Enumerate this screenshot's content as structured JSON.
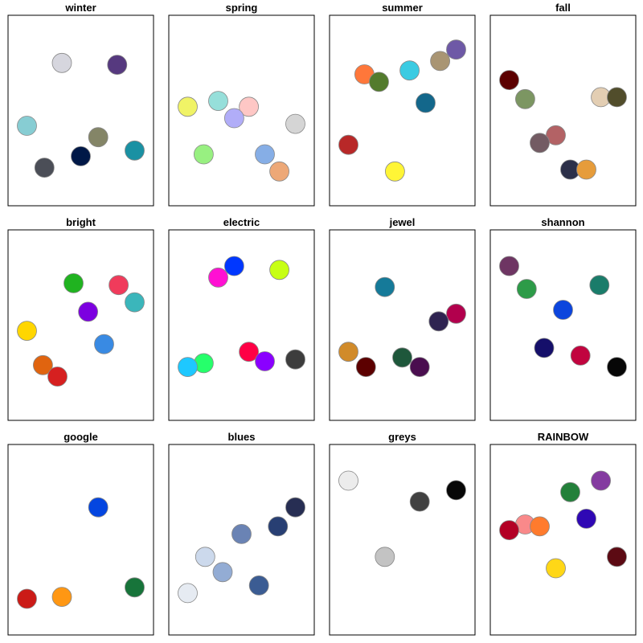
{
  "chart_data": [
    {
      "type": "scatter",
      "title": "winter",
      "points": [
        {
          "x": 0.37,
          "y": 0.75,
          "color": "#d6d6de"
        },
        {
          "x": 0.75,
          "y": 0.74,
          "color": "#56397f"
        },
        {
          "x": 0.13,
          "y": 0.42,
          "color": "#87cdd3"
        },
        {
          "x": 0.62,
          "y": 0.36,
          "color": "#848567"
        },
        {
          "x": 0.5,
          "y": 0.26,
          "color": "#001847"
        },
        {
          "x": 0.87,
          "y": 0.29,
          "color": "#1a91a3"
        },
        {
          "x": 0.25,
          "y": 0.2,
          "color": "#4b4e57"
        }
      ]
    },
    {
      "type": "scatter",
      "title": "spring",
      "points": [
        {
          "x": 0.13,
          "y": 0.52,
          "color": "#f0f366"
        },
        {
          "x": 0.34,
          "y": 0.55,
          "color": "#96dfda"
        },
        {
          "x": 0.55,
          "y": 0.52,
          "color": "#fec7c5"
        },
        {
          "x": 0.45,
          "y": 0.46,
          "color": "#b1adf8"
        },
        {
          "x": 0.87,
          "y": 0.43,
          "color": "#d5d5d5"
        },
        {
          "x": 0.24,
          "y": 0.27,
          "color": "#98f081"
        },
        {
          "x": 0.66,
          "y": 0.27,
          "color": "#86aee6"
        },
        {
          "x": 0.76,
          "y": 0.18,
          "color": "#eda877"
        }
      ]
    },
    {
      "type": "scatter",
      "title": "summer",
      "points": [
        {
          "x": 0.87,
          "y": 0.82,
          "color": "#6e59a6"
        },
        {
          "x": 0.76,
          "y": 0.76,
          "color": "#a99573"
        },
        {
          "x": 0.55,
          "y": 0.71,
          "color": "#3bcbe2"
        },
        {
          "x": 0.24,
          "y": 0.69,
          "color": "#ff773a"
        },
        {
          "x": 0.34,
          "y": 0.65,
          "color": "#537b2d"
        },
        {
          "x": 0.66,
          "y": 0.54,
          "color": "#13678b"
        },
        {
          "x": 0.13,
          "y": 0.32,
          "color": "#b82828"
        },
        {
          "x": 0.45,
          "y": 0.18,
          "color": "#fff536"
        }
      ]
    },
    {
      "type": "scatter",
      "title": "fall",
      "points": [
        {
          "x": 0.13,
          "y": 0.66,
          "color": "#5c0000"
        },
        {
          "x": 0.24,
          "y": 0.56,
          "color": "#7c9662"
        },
        {
          "x": 0.76,
          "y": 0.57,
          "color": "#e3ceb3"
        },
        {
          "x": 0.87,
          "y": 0.57,
          "color": "#514d2b"
        },
        {
          "x": 0.45,
          "y": 0.37,
          "color": "#b36265"
        },
        {
          "x": 0.34,
          "y": 0.33,
          "color": "#735b63"
        },
        {
          "x": 0.55,
          "y": 0.19,
          "color": "#2c3049"
        },
        {
          "x": 0.66,
          "y": 0.19,
          "color": "#e69c3b"
        }
      ]
    },
    {
      "type": "scatter",
      "title": "bright",
      "points": [
        {
          "x": 0.45,
          "y": 0.72,
          "color": "#20b320"
        },
        {
          "x": 0.76,
          "y": 0.71,
          "color": "#f03b5b"
        },
        {
          "x": 0.87,
          "y": 0.62,
          "color": "#3bb6bb"
        },
        {
          "x": 0.55,
          "y": 0.57,
          "color": "#7c00e0"
        },
        {
          "x": 0.13,
          "y": 0.47,
          "color": "#ffd600"
        },
        {
          "x": 0.66,
          "y": 0.4,
          "color": "#398ae3"
        },
        {
          "x": 0.24,
          "y": 0.29,
          "color": "#e0640f"
        },
        {
          "x": 0.34,
          "y": 0.23,
          "color": "#d62020"
        }
      ]
    },
    {
      "type": "scatter",
      "title": "electric",
      "points": [
        {
          "x": 0.45,
          "y": 0.81,
          "color": "#0037ff"
        },
        {
          "x": 0.76,
          "y": 0.79,
          "color": "#c7ff14"
        },
        {
          "x": 0.34,
          "y": 0.75,
          "color": "#ff10d3"
        },
        {
          "x": 0.55,
          "y": 0.36,
          "color": "#ff0045"
        },
        {
          "x": 0.87,
          "y": 0.32,
          "color": "#3d3d3d"
        },
        {
          "x": 0.24,
          "y": 0.3,
          "color": "#26ff6b"
        },
        {
          "x": 0.66,
          "y": 0.31,
          "color": "#8a00ff"
        },
        {
          "x": 0.13,
          "y": 0.28,
          "color": "#1ec8ff"
        }
      ]
    },
    {
      "type": "scatter",
      "title": "jewel",
      "points": [
        {
          "x": 0.38,
          "y": 0.7,
          "color": "#157a99"
        },
        {
          "x": 0.87,
          "y": 0.56,
          "color": "#b2004d"
        },
        {
          "x": 0.75,
          "y": 0.52,
          "color": "#2f2451"
        },
        {
          "x": 0.13,
          "y": 0.36,
          "color": "#d18b2a"
        },
        {
          "x": 0.5,
          "y": 0.33,
          "color": "#1e573b"
        },
        {
          "x": 0.25,
          "y": 0.28,
          "color": "#5c0000"
        },
        {
          "x": 0.62,
          "y": 0.28,
          "color": "#4a0e4f"
        }
      ]
    },
    {
      "type": "scatter",
      "title": "shannon",
      "points": [
        {
          "x": 0.13,
          "y": 0.81,
          "color": "#6e3563"
        },
        {
          "x": 0.25,
          "y": 0.69,
          "color": "#2d9b48"
        },
        {
          "x": 0.75,
          "y": 0.71,
          "color": "#1a7c6a"
        },
        {
          "x": 0.5,
          "y": 0.58,
          "color": "#0c45dd"
        },
        {
          "x": 0.37,
          "y": 0.38,
          "color": "#150f6a"
        },
        {
          "x": 0.62,
          "y": 0.34,
          "color": "#c1043f"
        },
        {
          "x": 0.87,
          "y": 0.28,
          "color": "#070707"
        }
      ]
    },
    {
      "type": "scatter",
      "title": "google",
      "points": [
        {
          "x": 0.62,
          "y": 0.67,
          "color": "#0446e0"
        },
        {
          "x": 0.87,
          "y": 0.25,
          "color": "#17743a"
        },
        {
          "x": 0.13,
          "y": 0.19,
          "color": "#cb1b17"
        },
        {
          "x": 0.37,
          "y": 0.2,
          "color": "#ff9713"
        }
      ]
    },
    {
      "type": "scatter",
      "title": "blues",
      "points": [
        {
          "x": 0.87,
          "y": 0.67,
          "color": "#272e53"
        },
        {
          "x": 0.75,
          "y": 0.57,
          "color": "#283f73"
        },
        {
          "x": 0.5,
          "y": 0.53,
          "color": "#6a83b4"
        },
        {
          "x": 0.25,
          "y": 0.41,
          "color": "#ccd9ec"
        },
        {
          "x": 0.37,
          "y": 0.33,
          "color": "#93acd4"
        },
        {
          "x": 0.62,
          "y": 0.26,
          "color": "#3b5c93"
        },
        {
          "x": 0.13,
          "y": 0.22,
          "color": "#e6ebf2"
        }
      ]
    },
    {
      "type": "scatter",
      "title": "greys",
      "points": [
        {
          "x": 0.13,
          "y": 0.81,
          "color": "#ececec"
        },
        {
          "x": 0.87,
          "y": 0.76,
          "color": "#070707"
        },
        {
          "x": 0.62,
          "y": 0.7,
          "color": "#414141"
        },
        {
          "x": 0.38,
          "y": 0.41,
          "color": "#c3c3c3"
        }
      ]
    },
    {
      "type": "scatter",
      "title": "RAINBOW",
      "points": [
        {
          "x": 0.76,
          "y": 0.81,
          "color": "#843ba0"
        },
        {
          "x": 0.55,
          "y": 0.75,
          "color": "#23803a"
        },
        {
          "x": 0.66,
          "y": 0.61,
          "color": "#2f08b4"
        },
        {
          "x": 0.24,
          "y": 0.58,
          "color": "#f9898a"
        },
        {
          "x": 0.34,
          "y": 0.57,
          "color": "#ff7b2d"
        },
        {
          "x": 0.13,
          "y": 0.55,
          "color": "#b30025"
        },
        {
          "x": 0.87,
          "y": 0.41,
          "color": "#5c0a13"
        },
        {
          "x": 0.45,
          "y": 0.35,
          "color": "#ffd717"
        }
      ]
    }
  ]
}
